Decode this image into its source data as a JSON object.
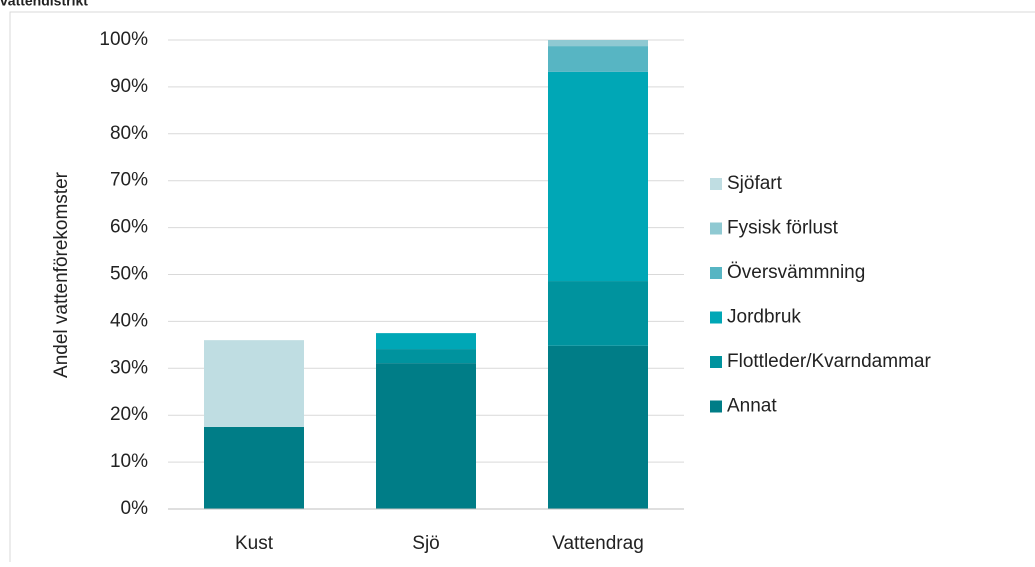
{
  "chart_data": {
    "type": "stacked_bar",
    "title": "vattendistrikt",
    "y_label": "Andel vattenförekomster",
    "categories": [
      "Kust",
      "Sjö",
      "Vattendrag"
    ],
    "series": [
      {
        "name": "Annat",
        "color": "#007d87",
        "values": [
          17.5,
          31.1,
          34.8
        ]
      },
      {
        "name": "Flottleder/Kvarndammar",
        "color": "#00939e",
        "values": [
          0,
          3,
          13.8
        ]
      },
      {
        "name": "Jordbruk",
        "color": "#00a7b6",
        "values": [
          0,
          3.4,
          44.6
        ]
      },
      {
        "name": "Översvämmning",
        "color": "#57b5c3",
        "values": [
          0,
          0,
          5.5
        ]
      },
      {
        "name": "Fysisk förlust",
        "color": "#8fc9d2",
        "values": [
          0,
          0,
          1.3
        ]
      },
      {
        "name": "Sjöfart",
        "color": "#bfdde2",
        "values": [
          18.5,
          0,
          0
        ]
      }
    ],
    "ylim": [
      0,
      100
    ],
    "yticks": [
      {
        "value": 0,
        "label": "0%"
      },
      {
        "value": 10,
        "label": "10%"
      },
      {
        "value": 20,
        "label": "20%"
      },
      {
        "value": 30,
        "label": "30%"
      },
      {
        "value": 40,
        "label": "40%"
      },
      {
        "value": 50,
        "label": "50%"
      },
      {
        "value": 60,
        "label": "60%"
      },
      {
        "value": 70,
        "label": "70%"
      },
      {
        "value": 80,
        "label": "80%"
      },
      {
        "value": 90,
        "label": "90%"
      },
      {
        "value": 100,
        "label": "100%"
      }
    ],
    "grid": true,
    "legend": "right"
  }
}
